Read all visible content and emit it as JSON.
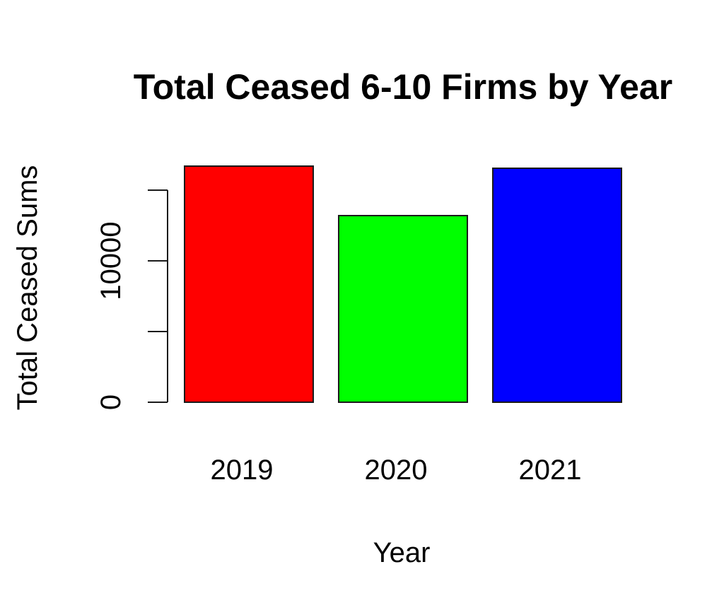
{
  "chart_data": {
    "type": "bar",
    "title": "Total Ceased 6-10 Firms by Year",
    "xlabel": "Year",
    "ylabel": "Total Ceased Sums",
    "categories": [
      "2019",
      "2020",
      "2021"
    ],
    "values": [
      16700,
      13200,
      16550
    ],
    "colors": [
      "#ff0000",
      "#00ff00",
      "#0000ff"
    ],
    "ylim": [
      0,
      18000
    ],
    "yticks": [
      0,
      5000,
      10000,
      15000
    ],
    "ytick_labels": [
      "0",
      "",
      "10000",
      ""
    ],
    "grid": false,
    "legend": "none"
  }
}
